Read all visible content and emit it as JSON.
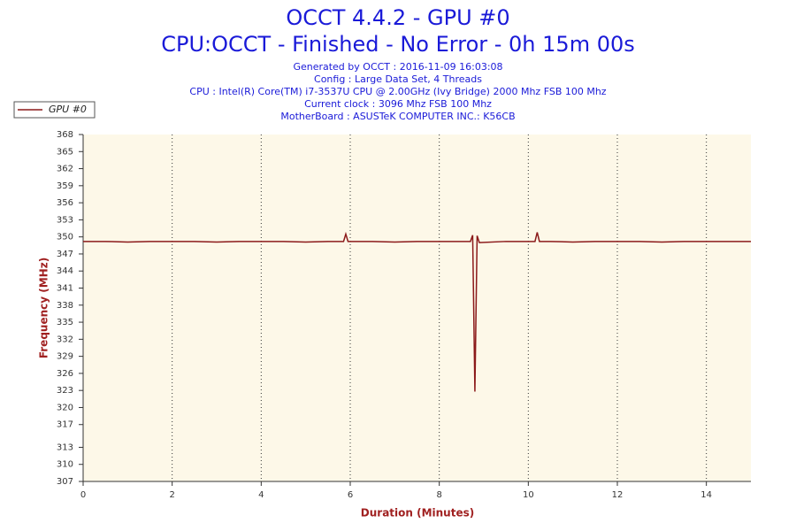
{
  "chart_data": {
    "type": "line",
    "title": "OCCT 4.4.2 - GPU #0",
    "subtitle": "CPU:OCCT - Finished - No Error - 0h 15m 00s",
    "info_lines": [
      "Generated by OCCT : 2016-11-09 16:03:08",
      "Config : Large Data Set, 4 Threads",
      "CPU : Intel(R) Core(TM) i7-3537U CPU @ 2.00GHz (Ivy Bridge) 2000 Mhz FSB 100 Mhz",
      "Current clock : 3096 Mhz FSB 100 Mhz",
      "MotherBoard : ASUSTeK COMPUTER INC.: K56CB"
    ],
    "x_label": "Duration (Minutes)",
    "y_label": "Frequency (MHz)",
    "x": [
      0,
      0.5,
      1,
      1.5,
      2,
      2.5,
      3,
      3.5,
      4,
      4.5,
      5,
      5.5,
      5.85,
      5.9,
      5.95,
      6.5,
      7,
      7.5,
      8,
      8.5,
      8.7,
      8.75,
      8.8,
      8.85,
      8.9,
      9.5,
      10,
      10.15,
      10.2,
      10.25,
      10.5,
      11,
      11.5,
      12,
      12.5,
      13,
      13.5,
      14,
      14.5,
      15
    ],
    "series": [
      {
        "name": "GPU #0",
        "color": "#8b1a1a",
        "values": [
          349.2,
          349.2,
          349.1,
          349.2,
          349.2,
          349.2,
          349.1,
          349.2,
          349.2,
          349.2,
          349.1,
          349.2,
          349.2,
          350.5,
          349.2,
          349.2,
          349.1,
          349.2,
          349.2,
          349.2,
          349.2,
          350.3,
          322.8,
          350.2,
          349.0,
          349.2,
          349.2,
          349.2,
          350.8,
          349.2,
          349.2,
          349.1,
          349.2,
          349.2,
          349.2,
          349.1,
          349.2,
          349.2,
          349.2,
          349.2
        ]
      }
    ],
    "xlim": [
      0,
      15
    ],
    "xticks": [
      0,
      2,
      4,
      6,
      8,
      10,
      12,
      14
    ],
    "ylim": [
      307,
      368
    ],
    "yticks": [
      307,
      310,
      313,
      317,
      320,
      323,
      326,
      329,
      332,
      335,
      338,
      341,
      344,
      347,
      350,
      353,
      356,
      359,
      362,
      365,
      368
    ],
    "grid": true,
    "legend": "top-left"
  }
}
